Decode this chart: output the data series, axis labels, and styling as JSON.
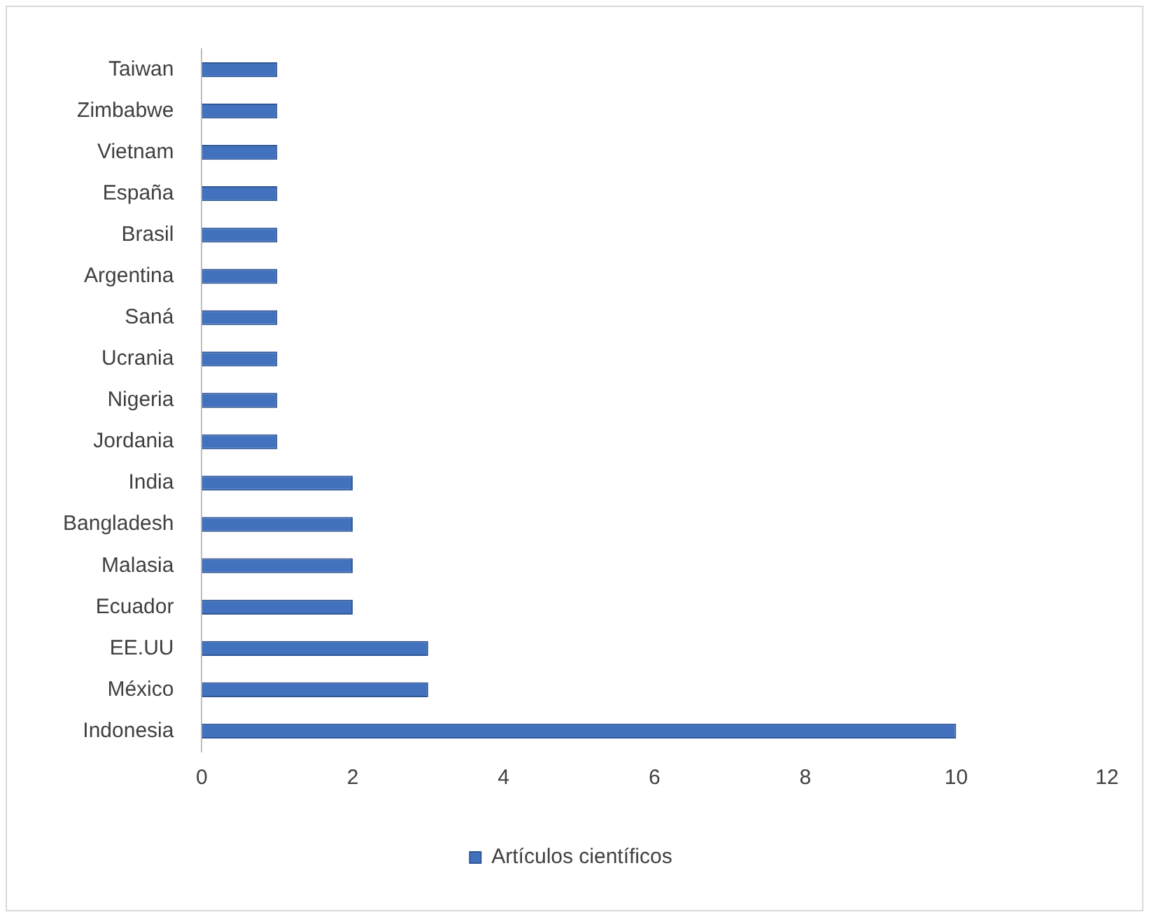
{
  "chart_data": {
    "type": "bar",
    "orientation": "horizontal",
    "categories": [
      "Taiwan",
      "Zimbabwe",
      "Vietnam",
      "España",
      "Brasil",
      "Argentina",
      "Saná",
      "Ucrania",
      "Nigeria",
      "Jordania",
      "India",
      "Bangladesh",
      "Malasia",
      "Ecuador",
      "EE.UU",
      "México",
      "Indonesia"
    ],
    "series": [
      {
        "name": "Artículos científicos",
        "color": "#4272be",
        "values": [
          1,
          1,
          1,
          1,
          1,
          1,
          1,
          1,
          1,
          1,
          2,
          2,
          2,
          2,
          3,
          3,
          10
        ]
      }
    ],
    "xlim": [
      0,
      12
    ],
    "xticks": [
      0,
      2,
      4,
      6,
      8,
      10,
      12
    ],
    "grid": false,
    "legend": "bottom"
  }
}
